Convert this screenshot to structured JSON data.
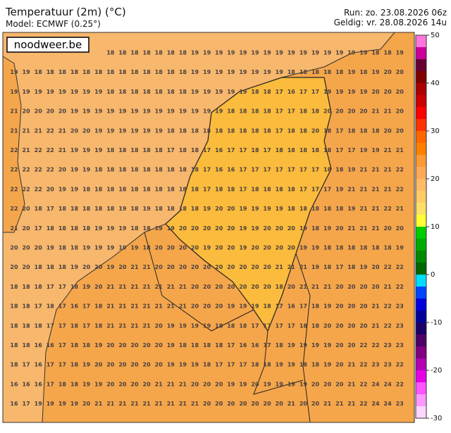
{
  "header": {
    "title": "Temperatuur (2m) (°C)",
    "model": "Model: ECMWF (0.25°)",
    "run": "Run: zo. 23.08.2026 06z",
    "valid": "Geldig: vr. 28.08.2026 14u"
  },
  "logo": "noodweer.be",
  "colorbar": {
    "min": -30,
    "max": 50,
    "ticks": [
      50,
      40,
      30,
      20,
      10,
      0,
      -10,
      -20,
      -30
    ],
    "colors": [
      "#ffd6ff",
      "#ff99ff",
      "#ff55ff",
      "#e600e6",
      "#b300b3",
      "#800080",
      "#4d0066",
      "#1a0066",
      "#000099",
      "#0000dd",
      "#0044ff",
      "#00ddff",
      "#006600",
      "#008800",
      "#00aa00",
      "#00cc00",
      "#ffff33",
      "#ffe066",
      "#ffcc66",
      "#ffbb66",
      "#ffaa55",
      "#ff9933",
      "#ff8000",
      "#ff6600",
      "#ff3300",
      "#ff0000",
      "#cc0000",
      "#aa0000",
      "#800000",
      "#660033",
      "#cc0099",
      "#ff77dd"
    ]
  },
  "grid": {
    "rows": [
      [
        null,
        null,
        null,
        null,
        null,
        null,
        null,
        null,
        18,
        18,
        18,
        18,
        18,
        18,
        18,
        19,
        19,
        19,
        19,
        19,
        19,
        19,
        19,
        19,
        19,
        19,
        19,
        19,
        19,
        19,
        18,
        18,
        19
      ],
      [
        19,
        19,
        18,
        18,
        18,
        18,
        18,
        18,
        18,
        18,
        18,
        18,
        18,
        18,
        18,
        19,
        19,
        19,
        19,
        19,
        19,
        19,
        19,
        18,
        18,
        18,
        18,
        18,
        19,
        18,
        19,
        20,
        20
      ],
      [
        19,
        19,
        19,
        19,
        19,
        19,
        19,
        19,
        18,
        18,
        18,
        18,
        18,
        18,
        18,
        19,
        19,
        19,
        19,
        19,
        18,
        18,
        17,
        16,
        17,
        17,
        19,
        19,
        19,
        19,
        20,
        20,
        20
      ],
      [
        21,
        20,
        20,
        20,
        20,
        19,
        19,
        19,
        19,
        19,
        19,
        19,
        19,
        19,
        19,
        19,
        19,
        19,
        18,
        18,
        18,
        18,
        17,
        17,
        18,
        18,
        20,
        20,
        20,
        20,
        21,
        21,
        20
      ],
      [
        21,
        21,
        21,
        22,
        21,
        20,
        20,
        19,
        19,
        19,
        19,
        19,
        19,
        18,
        18,
        18,
        18,
        18,
        18,
        18,
        18,
        18,
        17,
        18,
        18,
        20,
        18,
        17,
        18,
        18,
        18,
        20,
        20
      ],
      [
        22,
        21,
        22,
        22,
        21,
        19,
        19,
        19,
        18,
        18,
        18,
        18,
        18,
        17,
        18,
        18,
        17,
        16,
        17,
        17,
        18,
        17,
        18,
        18,
        18,
        18,
        18,
        17,
        17,
        19,
        19,
        21,
        21
      ],
      [
        22,
        22,
        22,
        22,
        20,
        19,
        19,
        18,
        18,
        18,
        18,
        18,
        18,
        18,
        18,
        18,
        17,
        16,
        16,
        17,
        17,
        17,
        17,
        17,
        17,
        17,
        18,
        18,
        19,
        21,
        21,
        21,
        22
      ],
      [
        22,
        22,
        22,
        20,
        19,
        19,
        18,
        18,
        18,
        18,
        18,
        18,
        18,
        18,
        18,
        18,
        17,
        18,
        18,
        17,
        18,
        18,
        18,
        18,
        17,
        17,
        17,
        19,
        21,
        21,
        21,
        21,
        22
      ],
      [
        22,
        20,
        18,
        17,
        18,
        18,
        18,
        18,
        18,
        19,
        18,
        19,
        18,
        18,
        18,
        18,
        19,
        20,
        20,
        19,
        19,
        19,
        19,
        18,
        18,
        18,
        18,
        18,
        19,
        21,
        21,
        22,
        21
      ],
      [
        21,
        20,
        17,
        18,
        18,
        18,
        18,
        19,
        19,
        19,
        18,
        18,
        19,
        19,
        20,
        20,
        20,
        20,
        20,
        19,
        19,
        20,
        20,
        20,
        19,
        18,
        19,
        20,
        21,
        21,
        21,
        20,
        20
      ],
      [
        20,
        20,
        20,
        19,
        18,
        18,
        19,
        19,
        19,
        19,
        19,
        18,
        20,
        20,
        20,
        20,
        19,
        20,
        20,
        19,
        20,
        20,
        20,
        20,
        19,
        19,
        18,
        18,
        18,
        18,
        18,
        18,
        19
      ],
      [
        20,
        20,
        18,
        18,
        18,
        19,
        20,
        20,
        19,
        20,
        21,
        21,
        20,
        20,
        20,
        20,
        20,
        20,
        20,
        20,
        20,
        20,
        21,
        21,
        21,
        19,
        18,
        17,
        18,
        19,
        20,
        22,
        22
      ],
      [
        18,
        18,
        18,
        17,
        17,
        18,
        19,
        20,
        21,
        21,
        21,
        21,
        21,
        21,
        21,
        20,
        20,
        20,
        20,
        20,
        20,
        20,
        18,
        20,
        21,
        21,
        21,
        20,
        20,
        20,
        20,
        21,
        22
      ],
      [
        18,
        18,
        17,
        18,
        17,
        16,
        17,
        18,
        21,
        21,
        21,
        21,
        21,
        21,
        21,
        20,
        20,
        20,
        19,
        19,
        19,
        18,
        17,
        16,
        17,
        18,
        19,
        20,
        20,
        20,
        21,
        22,
        23
      ],
      [
        18,
        18,
        18,
        17,
        17,
        18,
        17,
        18,
        21,
        21,
        21,
        21,
        20,
        19,
        19,
        19,
        19,
        18,
        18,
        18,
        17,
        17,
        17,
        17,
        18,
        18,
        20,
        20,
        20,
        20,
        21,
        22,
        23
      ],
      [
        18,
        18,
        16,
        16,
        17,
        18,
        18,
        19,
        20,
        20,
        20,
        20,
        20,
        19,
        18,
        18,
        18,
        18,
        17,
        16,
        16,
        17,
        18,
        19,
        19,
        19,
        19,
        20,
        20,
        22,
        22,
        23,
        23
      ],
      [
        18,
        17,
        16,
        17,
        17,
        18,
        19,
        20,
        20,
        20,
        20,
        20,
        20,
        19,
        19,
        19,
        18,
        17,
        17,
        17,
        18,
        18,
        19,
        19,
        18,
        18,
        19,
        20,
        21,
        22,
        23,
        23,
        22
      ],
      [
        16,
        16,
        16,
        17,
        18,
        18,
        19,
        19,
        20,
        20,
        20,
        20,
        21,
        21,
        21,
        20,
        20,
        20,
        19,
        19,
        20,
        19,
        19,
        19,
        19,
        20,
        20,
        20,
        21,
        22,
        24,
        24,
        22
      ],
      [
        16,
        17,
        19,
        19,
        19,
        19,
        20,
        21,
        21,
        21,
        21,
        21,
        21,
        21,
        21,
        21,
        20,
        20,
        20,
        20,
        20,
        20,
        20,
        21,
        20,
        20,
        21,
        21,
        21,
        22,
        24,
        24,
        23
      ]
    ]
  }
}
